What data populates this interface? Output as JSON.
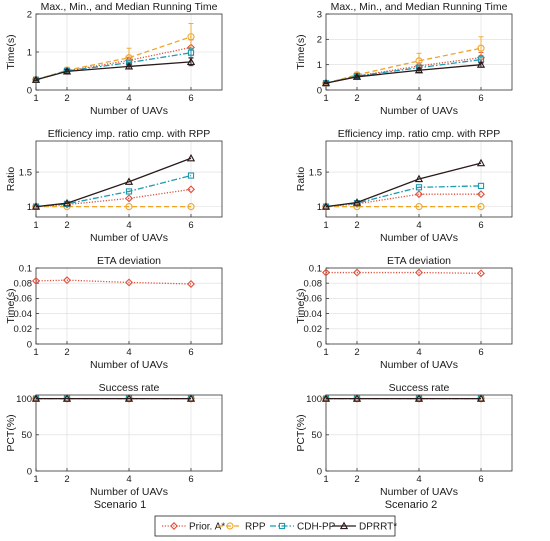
{
  "styles": {
    "Prior. A*": {
      "color": "#e0503c",
      "dash": "1.2,1.6",
      "marker": "diamond"
    },
    "RPP": {
      "color": "#eda62a",
      "dash": "5,3",
      "marker": "circle"
    },
    "CDH-PP": {
      "color": "#1f9ab0",
      "dash": "6,2,1.5,2",
      "marker": "square"
    },
    "DPRRT*": {
      "color": "#2a1a1a",
      "dash": "",
      "marker": "triangle"
    }
  },
  "legend": [
    "Prior. A*",
    "RPP",
    "CDH-PP",
    "DPRRT*"
  ],
  "scenario_labels": [
    "Scenario 1",
    "Scenario 2"
  ],
  "chart_data": [
    {
      "type": "line",
      "title": "Max., Min., and Median Running Time",
      "xlabel": "Number of UAVs",
      "ylabel": "Time(s)",
      "x": [
        1,
        2,
        4,
        6
      ],
      "xticks": [
        "1",
        "2",
        "4",
        "6"
      ],
      "xlim": [
        1,
        7
      ],
      "ylim": [
        0,
        2
      ],
      "yticks": [
        "0",
        "1",
        "2"
      ],
      "grid": true,
      "series": [
        {
          "name": "Prior. A*",
          "values": [
            0.27,
            0.5,
            0.78,
            1.12
          ],
          "err": [
            0.02,
            0.05,
            0.08,
            0.2
          ]
        },
        {
          "name": "RPP",
          "values": [
            0.27,
            0.52,
            0.85,
            1.4
          ],
          "err": [
            0.02,
            0.08,
            0.25,
            0.35
          ]
        },
        {
          "name": "CDH-PP",
          "values": [
            0.27,
            0.5,
            0.72,
            0.98
          ],
          "err": [
            0.02,
            0.05,
            0.07,
            0.12
          ]
        },
        {
          "name": "DPRRT*",
          "values": [
            0.27,
            0.49,
            0.62,
            0.74
          ],
          "err": [
            0.02,
            0.05,
            0.06,
            0.1
          ]
        }
      ]
    },
    {
      "type": "line",
      "title": "Max., Min., and Median Running Time",
      "xlabel": "Number of UAVs",
      "ylabel": "Time(s)",
      "x": [
        1,
        2,
        4,
        6
      ],
      "xticks": [
        "1",
        "2",
        "4",
        "6"
      ],
      "xlim": [
        1,
        7
      ],
      "ylim": [
        0,
        3
      ],
      "yticks": [
        "0",
        "1",
        "2",
        "3"
      ],
      "grid": true,
      "series": [
        {
          "name": "Prior. A*",
          "values": [
            0.27,
            0.55,
            0.95,
            1.28
          ],
          "err": [
            0.02,
            0.06,
            0.12,
            0.2
          ]
        },
        {
          "name": "RPP",
          "values": [
            0.27,
            0.6,
            1.15,
            1.65
          ],
          "err": [
            0.02,
            0.1,
            0.3,
            0.45
          ]
        },
        {
          "name": "CDH-PP",
          "values": [
            0.27,
            0.55,
            0.88,
            1.2
          ],
          "err": [
            0.02,
            0.06,
            0.1,
            0.15
          ]
        },
        {
          "name": "DPRRT*",
          "values": [
            0.27,
            0.52,
            0.78,
            1.0
          ],
          "err": [
            0.02,
            0.05,
            0.08,
            0.1
          ]
        }
      ]
    },
    {
      "type": "line",
      "title": "Efficiency imp. ratio cmp. with RPP",
      "xlabel": "Number of UAVs",
      "ylabel": "Ratio",
      "x": [
        1,
        2,
        4,
        6
      ],
      "xticks": [
        "1",
        "2",
        "4",
        "6"
      ],
      "xlim": [
        1,
        7
      ],
      "ylim": [
        0.85,
        1.95
      ],
      "ytickvals": [
        1,
        1.5
      ],
      "yticks": [
        "1",
        "1.5"
      ],
      "grid": true,
      "series": [
        {
          "name": "Prior. A*",
          "values": [
            1.0,
            1.03,
            1.12,
            1.25
          ]
        },
        {
          "name": "RPP",
          "values": [
            1.0,
            1.0,
            1.0,
            1.0
          ]
        },
        {
          "name": "CDH-PP",
          "values": [
            1.0,
            1.04,
            1.22,
            1.45
          ]
        },
        {
          "name": "DPRRT*",
          "values": [
            1.0,
            1.05,
            1.36,
            1.7
          ]
        }
      ]
    },
    {
      "type": "line",
      "title": "Efficiency imp. ratio cmp. with RPP",
      "xlabel": "Number of UAVs",
      "ylabel": "Ratio",
      "x": [
        1,
        2,
        4,
        6
      ],
      "xticks": [
        "1",
        "2",
        "4",
        "6"
      ],
      "xlim": [
        1,
        7
      ],
      "ylim": [
        0.85,
        1.95
      ],
      "ytickvals": [
        1,
        1.5
      ],
      "yticks": [
        "1",
        "1.5"
      ],
      "grid": true,
      "series": [
        {
          "name": "Prior. A*",
          "values": [
            1.0,
            1.04,
            1.18,
            1.18
          ]
        },
        {
          "name": "RPP",
          "values": [
            1.0,
            1.0,
            1.0,
            1.0
          ]
        },
        {
          "name": "CDH-PP",
          "values": [
            1.0,
            1.05,
            1.28,
            1.3
          ]
        },
        {
          "name": "DPRRT*",
          "values": [
            1.0,
            1.06,
            1.4,
            1.63
          ]
        }
      ]
    },
    {
      "type": "line",
      "title": "ETA deviation",
      "xlabel": "Number of UAVs",
      "ylabel": "Time(s)",
      "x": [
        1,
        2,
        4,
        6
      ],
      "xticks": [
        "1",
        "2",
        "4",
        "6"
      ],
      "xlim": [
        1,
        7
      ],
      "ylim": [
        0,
        0.1
      ],
      "ytickvals": [
        0,
        0.02,
        0.04,
        0.06,
        0.08,
        0.1
      ],
      "yticks": [
        "0",
        "0.02",
        "0.04",
        "0.06",
        "0.08",
        "0.1"
      ],
      "grid": true,
      "series": [
        {
          "name": "Prior. A*",
          "values": [
            0.083,
            0.084,
            0.081,
            0.079
          ]
        }
      ]
    },
    {
      "type": "line",
      "title": "ETA deviation",
      "xlabel": "Number of UAVs",
      "ylabel": "Time(s)",
      "x": [
        1,
        2,
        4,
        6
      ],
      "xticks": [
        "1",
        "2",
        "4",
        "6"
      ],
      "xlim": [
        1,
        7
      ],
      "ylim": [
        0,
        0.1
      ],
      "ytickvals": [
        0,
        0.02,
        0.04,
        0.06,
        0.08,
        0.1
      ],
      "yticks": [
        "0",
        "0.02",
        "0.04",
        "0.06",
        "0.08",
        "0.1"
      ],
      "grid": true,
      "series": [
        {
          "name": "Prior. A*",
          "values": [
            0.094,
            0.094,
            0.094,
            0.093
          ]
        }
      ]
    },
    {
      "type": "line",
      "title": "Success rate",
      "xlabel": "Number of UAVs",
      "ylabel": "PCT(%)",
      "x": [
        1,
        2,
        4,
        6
      ],
      "xticks": [
        "1",
        "2",
        "4",
        "6"
      ],
      "xlim": [
        1,
        7
      ],
      "ylim": [
        0,
        105
      ],
      "ytickvals": [
        0,
        50,
        100
      ],
      "yticks": [
        "0",
        "50",
        "100"
      ],
      "grid": true,
      "series": [
        {
          "name": "Prior. A*",
          "values": [
            100,
            100,
            100,
            100
          ]
        },
        {
          "name": "RPP",
          "values": [
            100,
            100,
            100,
            100
          ]
        },
        {
          "name": "CDH-PP",
          "values": [
            100,
            100,
            100,
            100
          ]
        },
        {
          "name": "DPRRT*",
          "values": [
            100,
            100,
            100,
            100
          ]
        }
      ]
    },
    {
      "type": "line",
      "title": "Success rate",
      "xlabel": "Number of UAVs",
      "ylabel": "PCT(%)",
      "x": [
        1,
        2,
        4,
        6
      ],
      "xticks": [
        "1",
        "2",
        "4",
        "6"
      ],
      "xlim": [
        1,
        7
      ],
      "ylim": [
        0,
        105
      ],
      "ytickvals": [
        0,
        50,
        100
      ],
      "yticks": [
        "0",
        "50",
        "100"
      ],
      "grid": true,
      "series": [
        {
          "name": "Prior. A*",
          "values": [
            100,
            100,
            100,
            100
          ]
        },
        {
          "name": "RPP",
          "values": [
            100,
            100,
            100,
            100
          ]
        },
        {
          "name": "CDH-PP",
          "values": [
            100,
            100,
            100,
            100
          ]
        },
        {
          "name": "DPRRT*",
          "values": [
            100,
            100,
            100,
            100
          ]
        }
      ]
    }
  ]
}
